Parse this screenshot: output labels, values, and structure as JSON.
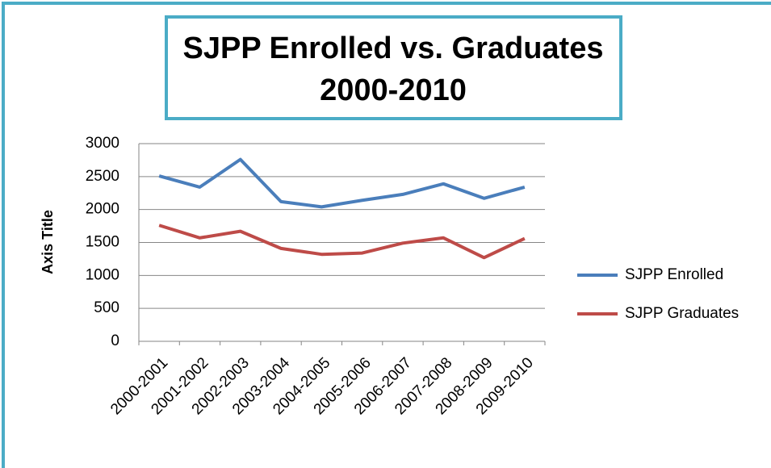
{
  "chart_data": {
    "type": "line",
    "title": [
      "SJPP Enrolled vs. Graduates",
      "2000-2010"
    ],
    "y_axis_label": "Axis Title",
    "categories": [
      "2000-2001",
      "2001-2002",
      "2002-2003",
      "2003-2004",
      "2004-2005",
      "2005-2006",
      "2006-2007",
      "2007-2008",
      "2008-2009",
      "2009-2010"
    ],
    "series": [
      {
        "name": "SJPP Enrolled",
        "color": "#4a7ebb",
        "values": [
          2510,
          2340,
          2760,
          2120,
          2040,
          2140,
          2230,
          2390,
          2170,
          2340
        ]
      },
      {
        "name": "SJPP Graduates",
        "color": "#be4b48",
        "values": [
          1760,
          1570,
          1670,
          1410,
          1320,
          1340,
          1490,
          1570,
          1270,
          1560
        ]
      }
    ],
    "ylim": [
      0,
      3000
    ],
    "yticks": [
      0,
      500,
      1000,
      1500,
      2000,
      2500,
      3000
    ],
    "grid": true,
    "legend": "right"
  }
}
